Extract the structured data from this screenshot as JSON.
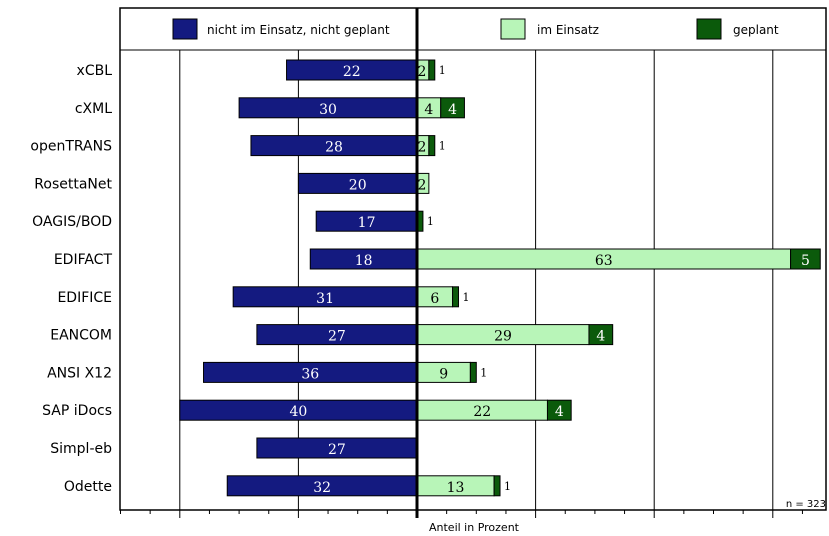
{
  "chart_data": {
    "type": "bar",
    "orientation": "horizontal-diverging",
    "categories": [
      "xCBL",
      "cXML",
      "openTRANS",
      "RosettaNet",
      "OAGIS/BOD",
      "EDIFACT",
      "EDIFICE",
      "EANCOM",
      "ANSI X12",
      "SAP iDocs",
      "Simpl-eb",
      "Odette"
    ],
    "series": [
      {
        "name": "nicht im Einsatz, nicht geplant",
        "color": "#141a80",
        "direction": "left",
        "values": [
          22,
          30,
          28,
          20,
          17,
          18,
          31,
          27,
          36,
          40,
          27,
          32
        ]
      },
      {
        "name": "im Einsatz",
        "color": "#b8f5b8",
        "direction": "right",
        "values": [
          2,
          4,
          2,
          2,
          0,
          63,
          6,
          29,
          9,
          22,
          0,
          13
        ]
      },
      {
        "name": "geplant",
        "color": "#0b5a0b",
        "direction": "right",
        "values": [
          1,
          4,
          1,
          0,
          1,
          5,
          1,
          4,
          1,
          4,
          0,
          1
        ]
      }
    ],
    "value_labels": {
      "left": [
        "22",
        "30",
        "28",
        "20",
        "17",
        "18",
        "31",
        "27",
        "36",
        "40",
        "27",
        "32"
      ],
      "im_einsatz": [
        "2",
        "4",
        "2",
        "2",
        "",
        "63",
        "6",
        "29",
        "9",
        "22",
        "",
        "13"
      ],
      "geplant": [
        "1",
        "4",
        "1",
        "",
        "1",
        "5",
        "1",
        "4",
        "1",
        "4",
        "",
        "1"
      ]
    },
    "xlabel": "Anteil in Prozent",
    "xlim": [
      -50,
      69
    ],
    "grid": true,
    "legend_position": "top",
    "note": "n = 323"
  }
}
